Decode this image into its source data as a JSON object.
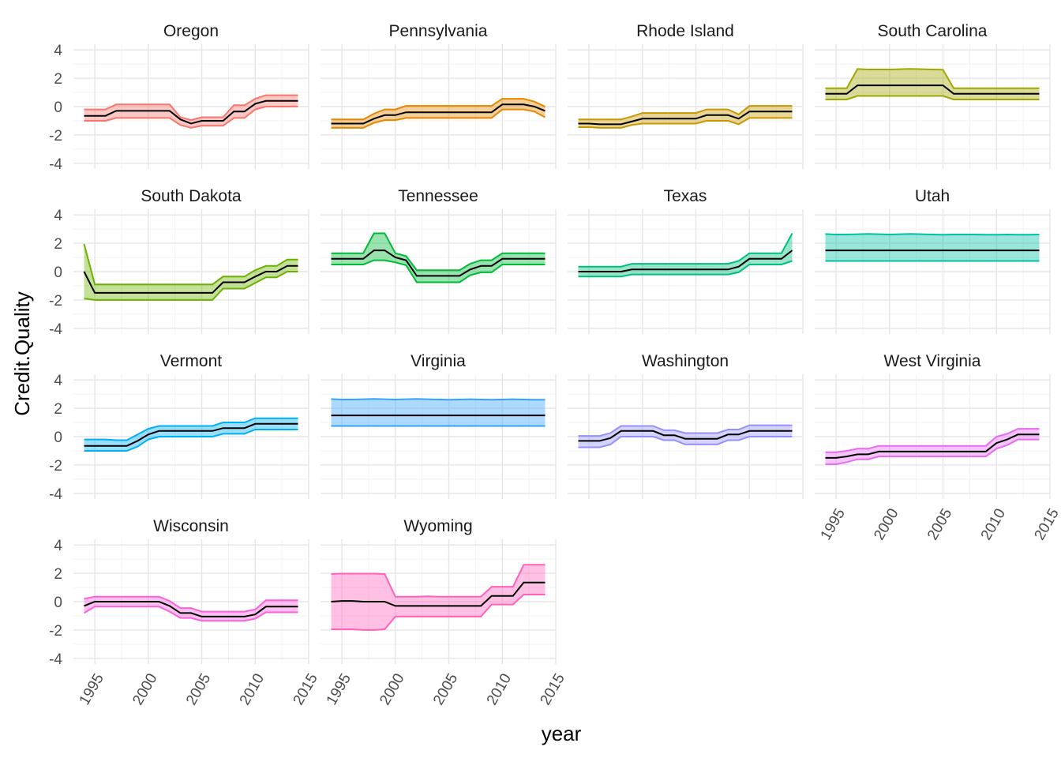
{
  "chart_data": {
    "type": "area",
    "facet_by": "state",
    "xlabel": "year",
    "ylabel": "Credit.Quality",
    "xlim": [
      1993,
      2015
    ],
    "ylim": [
      -4.4,
      4.4
    ],
    "x_ticks": [
      1995,
      2000,
      2005,
      2010,
      2015
    ],
    "y_ticks": [
      -4,
      -2,
      0,
      2,
      4
    ],
    "grid": true,
    "legend": "none",
    "years": [
      1994,
      1995,
      1996,
      1997,
      1998,
      1999,
      2000,
      2001,
      2002,
      2003,
      2004,
      2005,
      2006,
      2007,
      2008,
      2009,
      2010,
      2011,
      2012,
      2013,
      2014
    ],
    "panels": [
      {
        "name": "Oregon",
        "color": "#F8766D",
        "mean": [
          -0.65,
          -0.65,
          -0.65,
          -0.3,
          -0.3,
          -0.3,
          -0.3,
          -0.3,
          -0.3,
          -0.9,
          -1.2,
          -1.0,
          -1.0,
          -1.0,
          -0.35,
          -0.35,
          0.2,
          0.4,
          0.4,
          0.4,
          0.4
        ],
        "upper": [
          -0.2,
          -0.2,
          -0.2,
          0.15,
          0.15,
          0.15,
          0.15,
          0.15,
          0.15,
          -0.75,
          -0.95,
          -0.75,
          -0.75,
          -0.75,
          0.1,
          0.1,
          0.55,
          0.8,
          0.8,
          0.8,
          0.8
        ],
        "lower": [
          -1.0,
          -1.0,
          -1.0,
          -0.8,
          -0.8,
          -0.8,
          -0.8,
          -0.8,
          -0.8,
          -1.3,
          -1.5,
          -1.35,
          -1.35,
          -1.35,
          -0.8,
          -0.8,
          -0.2,
          0.0,
          0.0,
          0.0,
          0.0
        ]
      },
      {
        "name": "Pennsylvania",
        "color": "#E58700",
        "mean": [
          -1.2,
          -1.2,
          -1.2,
          -1.2,
          -0.85,
          -0.6,
          -0.6,
          -0.4,
          -0.4,
          -0.4,
          -0.4,
          -0.4,
          -0.4,
          -0.4,
          -0.4,
          -0.4,
          0.15,
          0.15,
          0.15,
          0.0,
          -0.3
        ],
        "upper": [
          -0.9,
          -0.9,
          -0.9,
          -0.9,
          -0.5,
          -0.2,
          -0.2,
          0.05,
          0.05,
          0.05,
          0.05,
          0.05,
          0.05,
          0.05,
          0.05,
          0.05,
          0.55,
          0.55,
          0.55,
          0.35,
          0.0
        ],
        "lower": [
          -1.5,
          -1.5,
          -1.5,
          -1.5,
          -1.15,
          -0.95,
          -0.95,
          -0.8,
          -0.8,
          -0.8,
          -0.8,
          -0.8,
          -0.8,
          -0.8,
          -0.8,
          -0.8,
          -0.2,
          -0.2,
          -0.2,
          -0.35,
          -0.75
        ]
      },
      {
        "name": "Rhode Island",
        "color": "#C99800",
        "mean": [
          -1.2,
          -1.2,
          -1.25,
          -1.25,
          -1.25,
          -1.05,
          -0.85,
          -0.85,
          -0.85,
          -0.85,
          -0.85,
          -0.85,
          -0.6,
          -0.6,
          -0.6,
          -0.85,
          -0.35,
          -0.35,
          -0.35,
          -0.35,
          -0.35
        ],
        "upper": [
          -0.9,
          -0.9,
          -0.9,
          -0.9,
          -0.9,
          -0.7,
          -0.45,
          -0.45,
          -0.45,
          -0.45,
          -0.45,
          -0.45,
          -0.2,
          -0.2,
          -0.2,
          -0.55,
          0.05,
          0.05,
          0.05,
          0.05,
          0.05
        ],
        "lower": [
          -1.45,
          -1.45,
          -1.5,
          -1.5,
          -1.5,
          -1.3,
          -1.2,
          -1.2,
          -1.2,
          -1.2,
          -1.2,
          -1.2,
          -1.0,
          -1.0,
          -1.0,
          -1.25,
          -0.8,
          -0.8,
          -0.8,
          -0.8,
          -0.8
        ]
      },
      {
        "name": "South Carolina",
        "color": "#A3A500",
        "mean": [
          0.9,
          0.9,
          0.9,
          1.5,
          1.5,
          1.5,
          1.5,
          1.5,
          1.5,
          1.5,
          1.5,
          1.5,
          0.9,
          0.9,
          0.9,
          0.9,
          0.9,
          0.9,
          0.9,
          0.9,
          0.9
        ],
        "upper": [
          1.3,
          1.3,
          1.3,
          2.65,
          2.62,
          2.62,
          2.62,
          2.64,
          2.66,
          2.64,
          2.62,
          2.6,
          1.3,
          1.3,
          1.3,
          1.3,
          1.3,
          1.3,
          1.3,
          1.3,
          1.3
        ],
        "lower": [
          0.5,
          0.5,
          0.5,
          0.75,
          0.75,
          0.75,
          0.75,
          0.75,
          0.75,
          0.75,
          0.75,
          0.75,
          0.5,
          0.5,
          0.5,
          0.5,
          0.5,
          0.5,
          0.5,
          0.5,
          0.5
        ]
      },
      {
        "name": "South Dakota",
        "color": "#6BB100",
        "mean": [
          0.0,
          -1.5,
          -1.5,
          -1.5,
          -1.5,
          -1.5,
          -1.5,
          -1.5,
          -1.5,
          -1.5,
          -1.5,
          -1.5,
          -1.5,
          -0.75,
          -0.75,
          -0.75,
          -0.35,
          0.0,
          0.0,
          0.4,
          0.4
        ],
        "upper": [
          1.95,
          -0.9,
          -0.9,
          -0.9,
          -0.9,
          -0.9,
          -0.9,
          -0.9,
          -0.9,
          -0.9,
          -0.9,
          -0.9,
          -0.9,
          -0.35,
          -0.35,
          -0.35,
          0.1,
          0.4,
          0.4,
          0.85,
          0.85
        ],
        "lower": [
          -1.9,
          -2.0,
          -2.0,
          -2.0,
          -2.0,
          -2.0,
          -2.0,
          -2.0,
          -2.0,
          -2.0,
          -2.0,
          -2.0,
          -2.0,
          -1.2,
          -1.2,
          -1.2,
          -0.8,
          -0.4,
          -0.4,
          0.0,
          0.0
        ]
      },
      {
        "name": "Tennessee",
        "color": "#00BA38",
        "mean": [
          0.9,
          0.9,
          0.9,
          0.9,
          1.5,
          1.5,
          1.0,
          0.8,
          -0.3,
          -0.3,
          -0.3,
          -0.3,
          -0.3,
          0.15,
          0.4,
          0.4,
          0.9,
          0.9,
          0.9,
          0.9,
          0.9
        ],
        "upper": [
          1.3,
          1.3,
          1.3,
          1.3,
          2.7,
          2.7,
          1.3,
          1.1,
          0.1,
          0.1,
          0.1,
          0.1,
          0.1,
          0.55,
          0.8,
          0.8,
          1.3,
          1.3,
          1.3,
          1.3,
          1.3
        ],
        "lower": [
          0.5,
          0.5,
          0.5,
          0.5,
          0.8,
          0.8,
          0.65,
          0.45,
          -0.75,
          -0.75,
          -0.75,
          -0.75,
          -0.75,
          -0.25,
          -0.05,
          -0.05,
          0.5,
          0.5,
          0.5,
          0.5,
          0.5
        ]
      },
      {
        "name": "Texas",
        "color": "#00BF7D",
        "mean": [
          0.0,
          0.0,
          0.0,
          0.0,
          0.0,
          0.15,
          0.15,
          0.15,
          0.15,
          0.15,
          0.15,
          0.15,
          0.15,
          0.15,
          0.15,
          0.35,
          0.9,
          0.9,
          0.9,
          0.9,
          1.5
        ],
        "upper": [
          0.35,
          0.35,
          0.35,
          0.35,
          0.35,
          0.55,
          0.55,
          0.55,
          0.55,
          0.55,
          0.55,
          0.55,
          0.55,
          0.55,
          0.55,
          0.75,
          1.3,
          1.3,
          1.3,
          1.3,
          2.7
        ],
        "lower": [
          -0.35,
          -0.35,
          -0.35,
          -0.35,
          -0.35,
          -0.2,
          -0.2,
          -0.2,
          -0.2,
          -0.2,
          -0.2,
          -0.2,
          -0.2,
          -0.2,
          -0.2,
          -0.05,
          0.5,
          0.5,
          0.5,
          0.5,
          0.75
        ]
      },
      {
        "name": "Utah",
        "color": "#00C1A3",
        "mean": [
          1.5,
          1.5,
          1.5,
          1.5,
          1.5,
          1.5,
          1.5,
          1.5,
          1.5,
          1.5,
          1.5,
          1.5,
          1.5,
          1.5,
          1.5,
          1.5,
          1.5,
          1.5,
          1.5,
          1.5,
          1.5
        ],
        "upper": [
          2.65,
          2.62,
          2.62,
          2.64,
          2.66,
          2.64,
          2.62,
          2.64,
          2.66,
          2.64,
          2.62,
          2.6,
          2.62,
          2.62,
          2.62,
          2.6,
          2.6,
          2.62,
          2.6,
          2.6,
          2.62
        ],
        "lower": [
          0.75,
          0.75,
          0.75,
          0.75,
          0.75,
          0.75,
          0.75,
          0.75,
          0.75,
          0.75,
          0.75,
          0.75,
          0.75,
          0.75,
          0.75,
          0.75,
          0.75,
          0.75,
          0.75,
          0.75,
          0.75
        ]
      },
      {
        "name": "Vermont",
        "color": "#00B0F6",
        "mean": [
          -0.65,
          -0.65,
          -0.65,
          -0.65,
          -0.65,
          -0.3,
          0.15,
          0.4,
          0.4,
          0.4,
          0.4,
          0.4,
          0.4,
          0.6,
          0.6,
          0.6,
          0.9,
          0.9,
          0.9,
          0.9,
          0.9
        ],
        "upper": [
          -0.2,
          -0.2,
          -0.2,
          -0.25,
          -0.25,
          0.15,
          0.55,
          0.75,
          0.75,
          0.75,
          0.75,
          0.75,
          0.75,
          1.0,
          1.0,
          1.0,
          1.3,
          1.3,
          1.3,
          1.3,
          1.3
        ],
        "lower": [
          -1.0,
          -1.0,
          -1.0,
          -1.0,
          -1.0,
          -0.7,
          -0.2,
          0.0,
          0.0,
          0.0,
          0.0,
          0.0,
          0.0,
          0.2,
          0.2,
          0.2,
          0.5,
          0.5,
          0.5,
          0.5,
          0.5
        ]
      },
      {
        "name": "Virginia",
        "color": "#35A2FF",
        "mean": [
          1.5,
          1.5,
          1.5,
          1.5,
          1.5,
          1.5,
          1.5,
          1.5,
          1.5,
          1.5,
          1.5,
          1.5,
          1.5,
          1.5,
          1.5,
          1.5,
          1.5,
          1.5,
          1.5,
          1.5,
          1.5
        ],
        "upper": [
          2.65,
          2.62,
          2.62,
          2.64,
          2.66,
          2.64,
          2.62,
          2.64,
          2.66,
          2.64,
          2.62,
          2.6,
          2.62,
          2.64,
          2.62,
          2.6,
          2.62,
          2.64,
          2.62,
          2.6,
          2.6
        ],
        "lower": [
          0.75,
          0.75,
          0.75,
          0.75,
          0.75,
          0.75,
          0.75,
          0.75,
          0.75,
          0.75,
          0.75,
          0.75,
          0.75,
          0.75,
          0.75,
          0.75,
          0.75,
          0.75,
          0.75,
          0.75,
          0.75
        ]
      },
      {
        "name": "Washington",
        "color": "#9590FF",
        "mean": [
          -0.3,
          -0.3,
          -0.3,
          -0.1,
          0.4,
          0.4,
          0.4,
          0.4,
          0.1,
          0.1,
          -0.15,
          -0.15,
          -0.15,
          -0.15,
          0.15,
          0.15,
          0.4,
          0.4,
          0.4,
          0.4,
          0.4
        ],
        "upper": [
          0.05,
          0.05,
          0.05,
          0.25,
          0.75,
          0.75,
          0.75,
          0.75,
          0.45,
          0.45,
          0.25,
          0.25,
          0.25,
          0.25,
          0.5,
          0.5,
          0.8,
          0.8,
          0.8,
          0.8,
          0.8
        ],
        "lower": [
          -0.75,
          -0.75,
          -0.75,
          -0.55,
          0.0,
          0.0,
          0.0,
          0.0,
          -0.25,
          -0.25,
          -0.55,
          -0.55,
          -0.55,
          -0.55,
          -0.25,
          -0.25,
          0.0,
          0.0,
          0.0,
          0.0,
          0.0
        ]
      },
      {
        "name": "West Virginia",
        "color": "#E76BF3",
        "mean": [
          -1.5,
          -1.5,
          -1.4,
          -1.25,
          -1.25,
          -1.05,
          -1.05,
          -1.05,
          -1.05,
          -1.05,
          -1.05,
          -1.05,
          -1.05,
          -1.05,
          -1.05,
          -1.05,
          -0.45,
          -0.2,
          0.15,
          0.15,
          0.15
        ],
        "upper": [
          -1.1,
          -1.1,
          -1.0,
          -0.85,
          -0.85,
          -0.65,
          -0.65,
          -0.65,
          -0.65,
          -0.65,
          -0.65,
          -0.65,
          -0.65,
          -0.65,
          -0.65,
          -0.65,
          0.0,
          0.2,
          0.55,
          0.55,
          0.55
        ],
        "lower": [
          -1.95,
          -1.95,
          -1.8,
          -1.6,
          -1.6,
          -1.4,
          -1.4,
          -1.4,
          -1.4,
          -1.4,
          -1.4,
          -1.4,
          -1.4,
          -1.4,
          -1.4,
          -1.4,
          -0.85,
          -0.6,
          -0.2,
          -0.2,
          -0.2
        ],
        "x_axis": true
      },
      {
        "name": "Wisconsin",
        "color": "#FA62DB",
        "mean": [
          -0.3,
          0.0,
          0.0,
          0.0,
          0.0,
          0.0,
          0.0,
          0.0,
          -0.3,
          -0.8,
          -0.8,
          -1.05,
          -1.05,
          -1.05,
          -1.05,
          -1.05,
          -0.9,
          -0.35,
          -0.35,
          -0.35,
          -0.35
        ],
        "upper": [
          0.2,
          0.35,
          0.35,
          0.35,
          0.35,
          0.35,
          0.35,
          0.35,
          0.05,
          -0.45,
          -0.45,
          -0.7,
          -0.7,
          -0.7,
          -0.7,
          -0.7,
          -0.55,
          0.1,
          0.1,
          0.1,
          0.1
        ],
        "lower": [
          -0.8,
          -0.35,
          -0.35,
          -0.35,
          -0.35,
          -0.35,
          -0.35,
          -0.35,
          -0.7,
          -1.15,
          -1.15,
          -1.35,
          -1.35,
          -1.35,
          -1.35,
          -1.35,
          -1.2,
          -0.75,
          -0.75,
          -0.75,
          -0.75
        ],
        "x_axis": true
      },
      {
        "name": "Wyoming",
        "color": "#FF62BC",
        "mean": [
          0.0,
          0.05,
          0.05,
          0.0,
          0.0,
          0.0,
          -0.3,
          -0.3,
          -0.3,
          -0.3,
          -0.3,
          -0.3,
          -0.3,
          -0.3,
          -0.3,
          0.4,
          0.4,
          0.4,
          1.35,
          1.35,
          1.35
        ],
        "upper": [
          1.95,
          1.98,
          1.98,
          1.98,
          1.98,
          1.95,
          0.35,
          0.35,
          0.35,
          0.38,
          0.35,
          0.35,
          0.35,
          0.35,
          0.35,
          1.05,
          1.05,
          1.05,
          2.6,
          2.6,
          2.6
        ],
        "lower": [
          -1.95,
          -1.95,
          -1.95,
          -2.0,
          -2.0,
          -1.95,
          -1.05,
          -1.05,
          -1.05,
          -1.05,
          -1.05,
          -1.05,
          -1.05,
          -1.05,
          -1.05,
          -0.2,
          -0.2,
          -0.2,
          0.5,
          0.5,
          0.5
        ],
        "x_axis": true
      }
    ]
  }
}
